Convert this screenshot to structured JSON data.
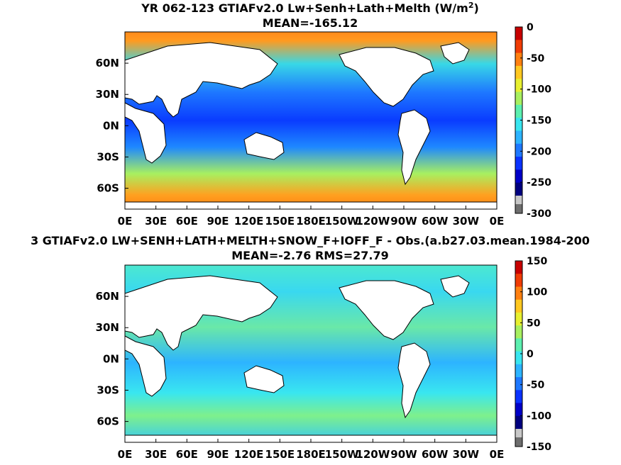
{
  "colormap": [
    "#00007f",
    "#0000c8",
    "#0a32ff",
    "#1e78ff",
    "#2db4ff",
    "#39e6f0",
    "#5cf0b0",
    "#a8f060",
    "#e8f030",
    "#ffc820",
    "#ff8010",
    "#f03c05",
    "#c80000"
  ],
  "chart_data": [
    {
      "type": "heatmap",
      "title_line1": "YR 062-123 GTIAFv2.0 Lw+Senh+Lath+Melth (W/m",
      "title_sup": "2",
      "title_line1_end": ")",
      "title_line2": "MEAN=-165.12",
      "xticks": [
        "0E",
        "30E",
        "60E",
        "90E",
        "120E",
        "150E",
        "180E",
        "150W",
        "120W",
        "90W",
        "60W",
        "30W",
        "0E"
      ],
      "yticks": [
        "60N",
        "30N",
        "0N",
        "30S",
        "60S"
      ],
      "colorbar": {
        "min": -300,
        "max": 0,
        "ticks": [
          "0",
          "-50",
          "-100",
          "-150",
          "-200",
          "-250",
          "-300"
        ],
        "out_of_range_color": "#6e6e6e"
      },
      "xlim": [
        0,
        360
      ],
      "ylim": [
        -80,
        90
      ]
    },
    {
      "type": "heatmap",
      "title_line1": "3 GTIAFv2.0 LW+SENH+LATH+MELTH+SNOW_F+IOFF_F - Obs.(a.b27.03.mean.1984-200",
      "title_line2": "MEAN=-2.76 RMS=27.79",
      "xticks": [
        "0E",
        "30E",
        "60E",
        "90E",
        "120E",
        "150E",
        "180E",
        "150W",
        "120W",
        "90W",
        "60W",
        "30W",
        "0E"
      ],
      "yticks": [
        "60N",
        "30N",
        "0N",
        "30S",
        "60S"
      ],
      "colorbar": {
        "min": -150,
        "max": 150,
        "ticks": [
          "150",
          "100",
          "50",
          "0",
          "-50",
          "-100",
          "-150"
        ],
        "out_of_range_color": "#6e6e6e"
      },
      "xlim": [
        0,
        360
      ],
      "ylim": [
        -80,
        90
      ]
    }
  ]
}
